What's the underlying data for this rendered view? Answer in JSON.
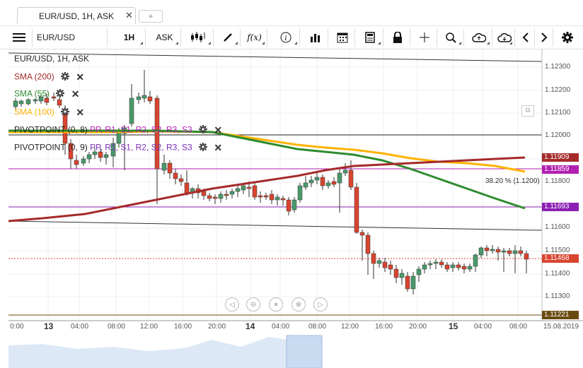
{
  "tab": {
    "label": "EUR/USD, 1H, ASK",
    "close": "✕",
    "add": "+"
  },
  "toolbar": {
    "symbol": "EUR/USD",
    "timeframe": "1H",
    "side": "ASK",
    "fx_label": "f(x)",
    "info_label": "i"
  },
  "legend": {
    "title": "EUR/USD, 1H, ASK",
    "sma200": "SMA (200)",
    "sma55": "SMA (55)",
    "sma100": "SMA (100)",
    "pivot1": {
      "name": "PIVOTPOINT (0, 8)",
      "levels": "PP, R1, S1, R2, S2, R3, S3"
    },
    "pivot2": {
      "name": "PIVOTPOINT (0, 9)",
      "levels": "PP, R1, S1, R2, S2, R3, S3"
    }
  },
  "fib_label": "38.20 % (1.1200)",
  "price_axis": [
    "1.12300",
    "1.12200",
    "1.12100",
    "1.12000",
    "1.11800",
    "1.11600",
    "1.11500",
    "1.11400",
    "1.11300"
  ],
  "price_tags": [
    {
      "value": "1.11909",
      "color": "#a52a2a"
    },
    {
      "value": "1.11859",
      "color": "#b21fb2"
    },
    {
      "value": "1.11693",
      "color": "#8b1fb2"
    },
    {
      "value": "1.11468",
      "color": "#d9442f"
    },
    {
      "value": "1.11221",
      "color": "#6b4a10"
    }
  ],
  "time_axis": [
    "0:00",
    "13",
    "04:00",
    "08:00",
    "12:00",
    "16:00",
    "20:00",
    "14",
    "04:00",
    "08:00",
    "12:00",
    "16:00",
    "20:00",
    "15",
    "04:00",
    "08:00",
    "15.08.2019"
  ],
  "colors": {
    "up": "#4a9a6a",
    "down": "#d9442f",
    "sma200": "#a52a2a",
    "sma55": "#2e8b2e",
    "sma100": "#ffb300"
  }
}
